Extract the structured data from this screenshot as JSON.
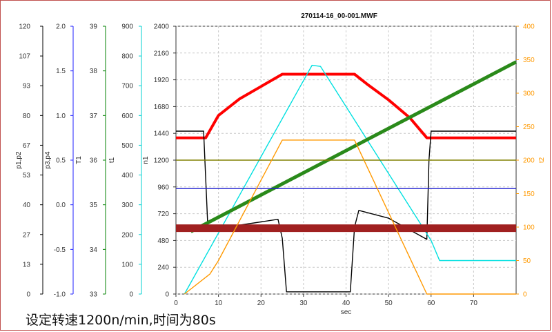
{
  "caption": "设定转速1200n/min,时间为80s",
  "chart_data": {
    "type": "line",
    "title": "270114-16_00-001.MWF",
    "xlabel": "sec",
    "xlim": [
      0,
      80
    ],
    "xticks": [
      0,
      10,
      20,
      30,
      40,
      50,
      60,
      70
    ],
    "grid": true,
    "axes": [
      {
        "label": "p1,p2",
        "color": "#000000",
        "side": "left",
        "ticks": [
          "120",
          "107",
          "93",
          "80",
          "67",
          "53",
          "40",
          "27",
          "13",
          "0"
        ]
      },
      {
        "label": "p3,p4",
        "color": "#2020ff",
        "side": "left",
        "ticks": [
          "2.0",
          "1.5",
          "1.0",
          "0.5",
          "0.0",
          "-0.5",
          "-1.0"
        ]
      },
      {
        "label": "T1",
        "color": "#008000",
        "side": "left",
        "ticks": [
          "39",
          "38",
          "37",
          "36",
          "35",
          "34",
          "33"
        ]
      },
      {
        "label": "t1",
        "color": "#00d0d0",
        "side": "left",
        "ticks": [
          "900",
          "800",
          "700",
          "600",
          "500",
          "400",
          "300",
          "200",
          "100",
          "0"
        ]
      },
      {
        "label": "n1",
        "color": "#000000",
        "side": "left",
        "ticks": [
          "2400",
          "2160",
          "1920",
          "1680",
          "1440",
          "1200",
          "960",
          "720",
          "480",
          "240",
          "0"
        ]
      },
      {
        "label": "t2",
        "color": "#ff9900",
        "side": "right",
        "ticks": [
          "400",
          "350",
          "300",
          "250",
          "200",
          "150",
          "100",
          "50",
          "0"
        ]
      }
    ],
    "ranges": {
      "n1": [
        0,
        2400
      ],
      "t2": [
        0,
        400
      ]
    },
    "series": [
      {
        "color": "#ff0000",
        "axis": "n1",
        "points": [
          [
            0,
            1400
          ],
          [
            7,
            1400
          ],
          [
            10,
            1600
          ],
          [
            15,
            1750
          ],
          [
            20,
            1860
          ],
          [
            25,
            1970
          ],
          [
            42,
            1970
          ],
          [
            45,
            1880
          ],
          [
            50,
            1740
          ],
          [
            55,
            1580
          ],
          [
            59,
            1400
          ],
          [
            80,
            1400
          ]
        ]
      },
      {
        "color": "#000000",
        "axis": "n1",
        "points": [
          [
            0,
            1460
          ],
          [
            6.5,
            1460
          ],
          [
            7.5,
            600
          ],
          [
            12,
            600
          ],
          [
            24,
            670
          ],
          [
            25,
            500
          ],
          [
            26,
            20
          ],
          [
            41,
            20
          ],
          [
            42,
            600
          ],
          [
            43,
            750
          ],
          [
            50,
            680
          ],
          [
            59,
            490
          ],
          [
            59.5,
            1200
          ],
          [
            60,
            1460
          ],
          [
            80,
            1460
          ]
        ]
      },
      {
        "color": "#00e0e0",
        "axis": "n1",
        "points": [
          [
            2,
            0
          ],
          [
            32,
            2050
          ],
          [
            34,
            2040
          ],
          [
            60,
            480
          ],
          [
            62,
            300
          ],
          [
            80,
            300
          ]
        ]
      },
      {
        "color": "#2a8a1a",
        "axis": "n1",
        "points": [
          [
            3.5,
            560
          ],
          [
            80,
            2080
          ]
        ]
      },
      {
        "color": "#1f1fd0",
        "axis": "n1",
        "points": [
          [
            0,
            945
          ],
          [
            80,
            945
          ]
        ]
      },
      {
        "color": "#808000",
        "axis": "n1",
        "points": [
          [
            0,
            1200
          ],
          [
            80,
            1200
          ]
        ]
      },
      {
        "color": "#a02020",
        "axis": "n1",
        "points": [
          [
            0,
            590
          ],
          [
            80,
            590
          ]
        ]
      },
      {
        "color": "#ff9900",
        "axis": "t2",
        "points": [
          [
            2,
            0
          ],
          [
            8,
            30
          ],
          [
            10,
            50
          ],
          [
            25,
            230
          ],
          [
            42,
            230
          ],
          [
            59,
            0
          ],
          [
            80,
            0
          ]
        ]
      }
    ]
  }
}
